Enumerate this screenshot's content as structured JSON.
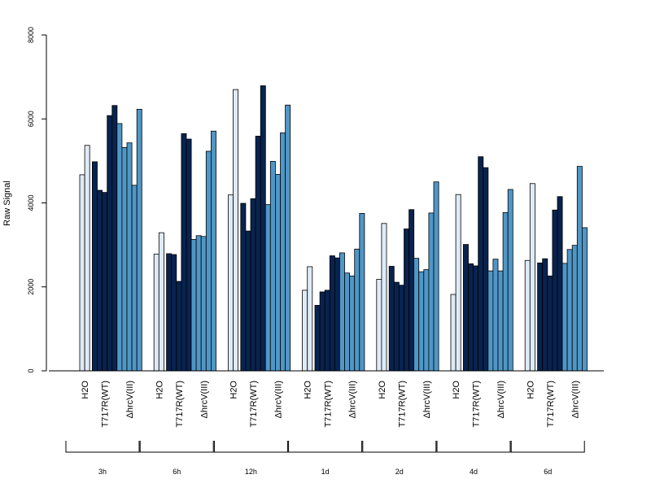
{
  "chart_data": {
    "type": "bar",
    "ylabel": "Raw Signal",
    "xlabel": "",
    "title": "",
    "ylim": [
      0,
      8000
    ],
    "yticks": [
      0,
      2000,
      4000,
      6000,
      8000
    ],
    "grid": false,
    "legend": "none",
    "colors": {
      "H2O": "#deebf7",
      "T717R(WT)": "#08234f",
      "ΔhrcV(III)": "#4f97c7"
    },
    "conditions": [
      "H2O",
      "T717R(WT)",
      "ΔhrcV(III)"
    ],
    "groups": [
      {
        "time": "3h",
        "series": [
          {
            "condition": "H2O",
            "values": [
              4670,
              5370
            ]
          },
          {
            "condition": "T717R(WT)",
            "values": [
              4980,
              4300,
              4250,
              6080,
              6320
            ]
          },
          {
            "condition": "ΔhrcV(III)",
            "values": [
              5890,
              5320,
              5430,
              4420,
              6230
            ]
          }
        ]
      },
      {
        "time": "6h",
        "series": [
          {
            "condition": "H2O",
            "values": [
              2780,
              3290
            ]
          },
          {
            "condition": "T717R(WT)",
            "values": [
              2790,
              2770,
              2130,
              5650,
              5520
            ]
          },
          {
            "condition": "ΔhrcV(III)",
            "values": [
              3130,
              3220,
              3200,
              5230,
              5710
            ]
          }
        ]
      },
      {
        "time": "12h",
        "series": [
          {
            "condition": "H2O",
            "values": [
              4190,
              6700
            ]
          },
          {
            "condition": "T717R(WT)",
            "values": [
              3990,
              3330,
              4100,
              5590,
              6790
            ]
          },
          {
            "condition": "ΔhrcV(III)",
            "values": [
              3960,
              4990,
              4680,
              5670,
              6330
            ]
          }
        ]
      },
      {
        "time": "1d",
        "series": [
          {
            "condition": "H2O",
            "values": [
              1920,
              2480
            ]
          },
          {
            "condition": "T717R(WT)",
            "values": [
              1560,
              1880,
              1920,
              2740,
              2690
            ]
          },
          {
            "condition": "ΔhrcV(III)",
            "values": [
              2810,
              2330,
              2260,
              2900,
              3750
            ]
          }
        ]
      },
      {
        "time": "2d",
        "series": [
          {
            "condition": "H2O",
            "values": [
              2180,
              3510
            ]
          },
          {
            "condition": "T717R(WT)",
            "values": [
              2490,
              2110,
              2040,
              3380,
              3840
            ]
          },
          {
            "condition": "ΔhrcV(III)",
            "values": [
              2680,
              2360,
              2410,
              3760,
              4500
            ]
          }
        ]
      },
      {
        "time": "4d",
        "series": [
          {
            "condition": "H2O",
            "values": [
              1820,
              4200
            ]
          },
          {
            "condition": "T717R(WT)",
            "values": [
              3010,
              2550,
              2500,
              5100,
              4840
            ]
          },
          {
            "condition": "ΔhrcV(III)",
            "values": [
              2380,
              2660,
              2380,
              3770,
              4320
            ]
          }
        ]
      },
      {
        "time": "6d",
        "series": [
          {
            "condition": "H2O",
            "values": [
              2630,
              4460
            ]
          },
          {
            "condition": "T717R(WT)",
            "values": [
              2570,
              2670,
              2260,
              3830,
              4150
            ]
          },
          {
            "condition": "ΔhrcV(III)",
            "values": [
              2560,
              2890,
              2990,
              4870,
              3410
            ]
          }
        ]
      }
    ]
  }
}
